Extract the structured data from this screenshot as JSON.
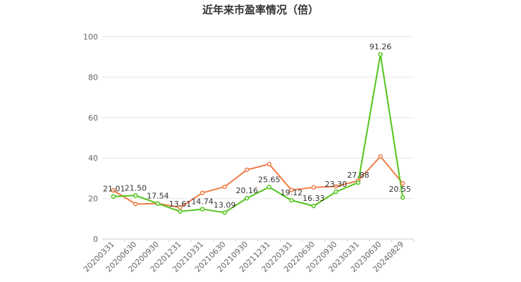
{
  "chart_data": {
    "type": "line",
    "title": "近年来市盈率情况（倍）",
    "categories": [
      "20200331",
      "20200630",
      "20200930",
      "20201231",
      "20210331",
      "20210630",
      "20210930",
      "20211231",
      "20220331",
      "20220630",
      "20220930",
      "20230331",
      "20230630",
      "20240829"
    ],
    "ylim": [
      0,
      100
    ],
    "yticks": [
      0,
      20,
      40,
      60,
      80,
      100
    ],
    "grid": true,
    "series": [
      {
        "color": "#52c41a",
        "values": [
          21.01,
          21.5,
          17.54,
          13.61,
          14.74,
          13.09,
          20.16,
          25.65,
          19.12,
          16.33,
          23.3,
          27.88,
          91.26,
          20.55
        ],
        "labels": [
          "21.01",
          "21.50",
          "17.54",
          "13.61",
          "14.74",
          "13.09",
          "20.16",
          "25.65",
          "19.12",
          "16.33",
          "23.30",
          "27.88",
          "91.26",
          "20.55"
        ]
      },
      {
        "color": "#f07c47",
        "values": [
          24.0,
          17.3,
          17.5,
          15.6,
          22.8,
          25.8,
          34.2,
          37.0,
          24.2,
          25.5,
          26.0,
          28.8,
          40.8,
          27.5
        ]
      }
    ]
  }
}
